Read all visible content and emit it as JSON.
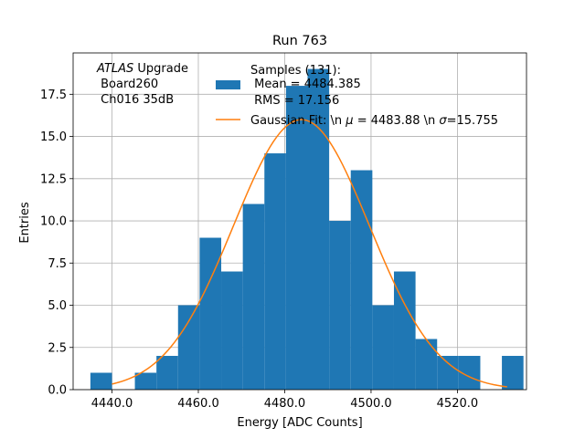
{
  "chart_data": {
    "type": "bar",
    "title": "Run 763",
    "xlabel": "Energy [ADC Counts]",
    "ylabel": "Entries",
    "xlim": [
      4431,
      4536
    ],
    "ylim": [
      0,
      19.95
    ],
    "grid": true,
    "bins": [
      {
        "x0": 4435.0,
        "x1": 4440.0,
        "count": 1
      },
      {
        "x0": 4440.0,
        "x1": 4445.3,
        "count": 0
      },
      {
        "x0": 4445.3,
        "x1": 4450.3,
        "count": 1
      },
      {
        "x0": 4450.3,
        "x1": 4455.3,
        "count": 2
      },
      {
        "x0": 4455.3,
        "x1": 4460.3,
        "count": 5
      },
      {
        "x0": 4460.3,
        "x1": 4465.3,
        "count": 9
      },
      {
        "x0": 4465.3,
        "x1": 4470.3,
        "count": 7
      },
      {
        "x0": 4470.3,
        "x1": 4475.3,
        "count": 11
      },
      {
        "x0": 4475.3,
        "x1": 4480.3,
        "count": 14
      },
      {
        "x0": 4480.3,
        "x1": 4485.3,
        "count": 18
      },
      {
        "x0": 4485.3,
        "x1": 4490.3,
        "count": 19
      },
      {
        "x0": 4490.3,
        "x1": 4495.3,
        "count": 10
      },
      {
        "x0": 4495.3,
        "x1": 4500.3,
        "count": 13
      },
      {
        "x0": 4500.3,
        "x1": 4505.3,
        "count": 5
      },
      {
        "x0": 4505.3,
        "x1": 4510.3,
        "count": 7
      },
      {
        "x0": 4510.3,
        "x1": 4515.3,
        "count": 3
      },
      {
        "x0": 4515.3,
        "x1": 4520.3,
        "count": 2
      },
      {
        "x0": 4520.3,
        "x1": 4525.3,
        "count": 2
      },
      {
        "x0": 4525.3,
        "x1": 4530.3,
        "count": 0
      },
      {
        "x0": 4530.3,
        "x1": 4535.3,
        "count": 2
      }
    ],
    "fit": {
      "type": "gaussian",
      "mu": 4483.88,
      "sigma": 15.755,
      "amplitude": 16.0,
      "x_range": [
        4440.0,
        4531.5
      ]
    },
    "x_ticks": [
      4440.0,
      4460.0,
      4480.0,
      4500.0,
      4520.0
    ],
    "x_tick_labels": [
      "4440.0",
      "4460.0",
      "4480.0",
      "4500.0",
      "4520.0"
    ],
    "y_ticks": [
      0.0,
      2.5,
      5.0,
      7.5,
      10.0,
      12.5,
      15.0,
      17.5
    ],
    "y_tick_labels": [
      "0.0",
      "2.5",
      "5.0",
      "7.5",
      "10.0",
      "12.5",
      "15.0",
      "17.5"
    ],
    "annotation": {
      "atlas": "ATLAS",
      "upgrade": " Upgrade",
      "line2": " Board260",
      "line3": " Ch016 35dB"
    },
    "legend": {
      "placement": "top-center",
      "histogram": {
        "line1": "Samples (131):",
        "line2": " Mean = 4484.385",
        "line3": " RMS = 17.156"
      },
      "fit": {
        "pre": "Gaussian Fit: \\n ",
        "mu_sym": "μ",
        "mid": " = 4483.88 \\n ",
        "sigma_sym": "σ",
        "post": "=15.755"
      }
    },
    "colors": {
      "bars": "#1f77b4",
      "fit": "#ff7f0e",
      "grid": "#b0b0b0",
      "axes": "#000000"
    }
  }
}
